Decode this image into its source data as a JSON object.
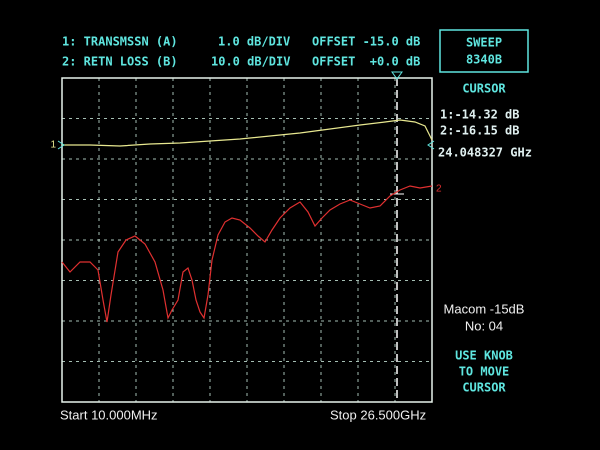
{
  "header": {
    "lines": [
      {
        "label": "1: TRANSMSSN (A)",
        "scale": "1.0 dB/DIV",
        "offset": "OFFSET -15.0 dB"
      },
      {
        "label": "2: RETN LOSS (B)",
        "scale": "10.0 dB/DIV",
        "offset": "OFFSET  +0.0 dB"
      }
    ]
  },
  "source_box": {
    "title": "SWEEP",
    "model": "8340B"
  },
  "cursor_panel": {
    "title": "CURSOR",
    "readings": [
      "1:-14.32 dB",
      "2:-16.15 dB"
    ],
    "frequency": "24.048327 GHz"
  },
  "device": {
    "name": "Macom -15dB",
    "number": "No: 04"
  },
  "help": [
    "USE KNOB",
    "TO MOVE",
    "CURSOR"
  ],
  "footer": {
    "start": "Start 10.000MHz",
    "stop": "Stop 26.500GHz"
  },
  "trace_markers": [
    "1",
    "2"
  ]
}
